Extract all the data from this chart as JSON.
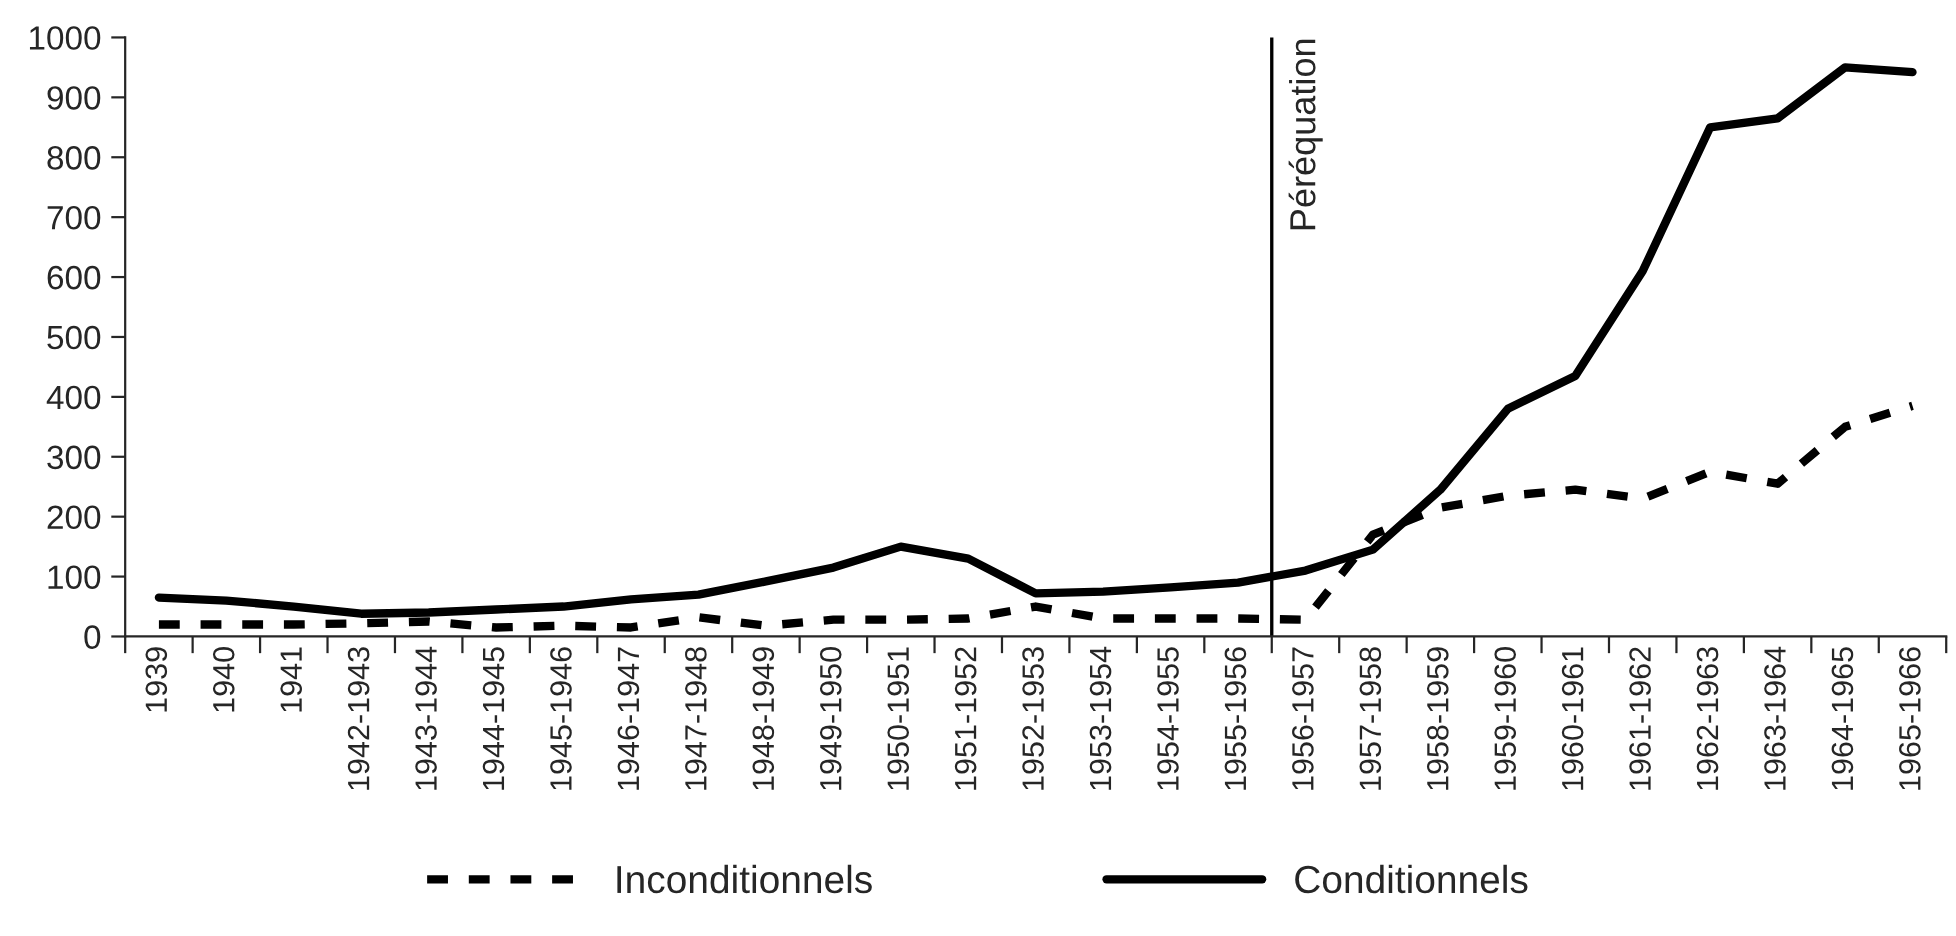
{
  "chart_data": {
    "type": "line",
    "categories": [
      "1939",
      "1940",
      "1941",
      "1942-1943",
      "1943-1944",
      "1944-1945",
      "1945-1946",
      "1946-1947",
      "1947-1948",
      "1948-1949",
      "1949-1950",
      "1950-1951",
      "1951-1952",
      "1952-1953",
      "1953-1954",
      "1954-1955",
      "1955-1956",
      "1956-1957",
      "1957-1958",
      "1958-1959",
      "1959-1960",
      "1960-1961",
      "1961-1962",
      "1962-1963",
      "1963-1964",
      "1964-1965",
      "1965-1966"
    ],
    "series": [
      {
        "name": "Inconditionnels",
        "color": "#000000",
        "line_style": "dashed",
        "values": [
          20,
          20,
          20,
          22,
          25,
          15,
          18,
          15,
          32,
          18,
          28,
          28,
          30,
          50,
          30,
          30,
          30,
          28,
          170,
          215,
          235,
          245,
          230,
          275,
          255,
          350,
          385
        ]
      },
      {
        "name": "Conditionnels",
        "color": "#000000",
        "line_style": "solid",
        "values": [
          65,
          60,
          50,
          38,
          40,
          45,
          50,
          62,
          70,
          92,
          115,
          150,
          130,
          72,
          75,
          82,
          90,
          110,
          145,
          245,
          380,
          435,
          610,
          850,
          865,
          950,
          942
        ]
      }
    ],
    "ylim": [
      0,
      1000
    ],
    "yticks": [
      0,
      100,
      200,
      300,
      400,
      500,
      600,
      700,
      800,
      900,
      1000
    ],
    "annotations": [
      "Péréquation"
    ],
    "grid": false,
    "legend": "bottom",
    "marker": "none"
  }
}
